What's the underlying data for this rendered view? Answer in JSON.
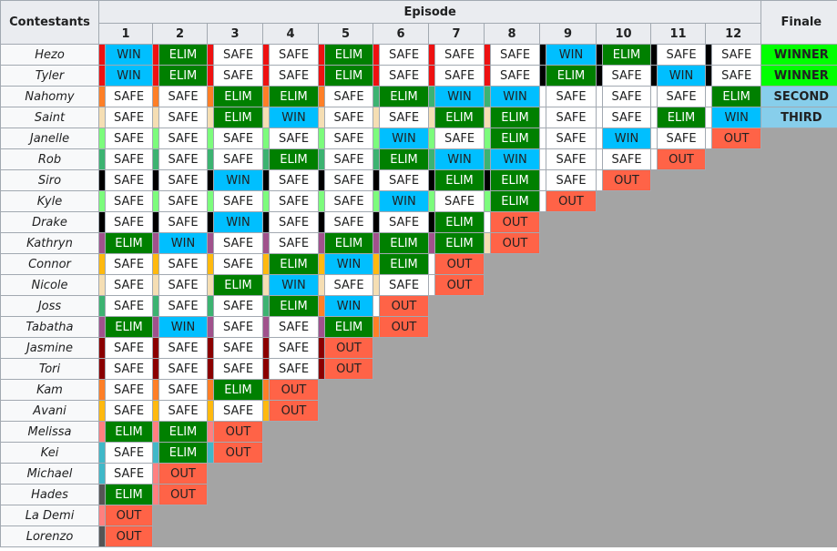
{
  "header": {
    "contestants_label": "Contestants",
    "episode_label": "Episode",
    "episodes": [
      "1",
      "2",
      "3",
      "4",
      "5",
      "6",
      "7",
      "8",
      "9",
      "10",
      "11",
      "12"
    ],
    "finale_label": "Finale"
  },
  "rows": [
    {
      "name": "Hezo",
      "color": "#ee1111",
      "results": [
        "WIN",
        "ELIM",
        "SAFE",
        "SAFE",
        "ELIM",
        "SAFE",
        "SAFE",
        "SAFE",
        "WIN",
        "ELIM",
        "SAFE",
        "SAFE"
      ],
      "finale": "WINNER",
      "stripes": [
        "#ee1111",
        "#ee1111",
        "#ee1111",
        "#ee1111",
        "#ee1111",
        "#ee1111",
        "#ee1111",
        "#ee1111",
        "#000000",
        "#000000",
        "#000000",
        "#000000"
      ]
    },
    {
      "name": "Tyler",
      "color": "#ee1111",
      "results": [
        "WIN",
        "ELIM",
        "SAFE",
        "SAFE",
        "ELIM",
        "SAFE",
        "SAFE",
        "SAFE",
        "ELIM",
        "SAFE",
        "WIN",
        "SAFE"
      ],
      "finale": "WINNER",
      "stripes": [
        "#ee1111",
        "#ee1111",
        "#ee1111",
        "#ee1111",
        "#ee1111",
        "#ee1111",
        "#ee1111",
        "#ee1111",
        "#000000",
        "#000000",
        "#000000",
        "#000000"
      ]
    },
    {
      "name": "Nahomy",
      "color": "#ff7f27",
      "results": [
        "SAFE",
        "SAFE",
        "ELIM",
        "ELIM",
        "SAFE",
        "ELIM",
        "WIN",
        "WIN",
        "SAFE",
        "SAFE",
        "SAFE",
        "ELIM"
      ],
      "finale": "SECOND",
      "stripes": [
        "#ff7f27",
        "#ff7f27",
        "#ff7f27",
        "#ff7f27",
        "#ff7f27",
        "#3cb371",
        "#3cb371",
        "#3cb371",
        "#ffffff",
        "#ffffff",
        "#ffffff",
        "#ffffff"
      ]
    },
    {
      "name": "Saint",
      "color": "#f5deb3",
      "results": [
        "SAFE",
        "SAFE",
        "ELIM",
        "WIN",
        "SAFE",
        "SAFE",
        "ELIM",
        "ELIM",
        "SAFE",
        "SAFE",
        "ELIM",
        "WIN"
      ],
      "finale": "THIRD",
      "stripes": [
        "#f5deb3",
        "#f5deb3",
        "#f5deb3",
        "#f5deb3",
        "#f5deb3",
        "#f5deb3",
        "#f5deb3",
        "#f5deb3",
        "#ffffff",
        "#ffffff",
        "#ffffff",
        "#ffffff"
      ]
    },
    {
      "name": "Janelle",
      "color": "#7cfc7c",
      "results": [
        "SAFE",
        "SAFE",
        "SAFE",
        "SAFE",
        "SAFE",
        "WIN",
        "SAFE",
        "ELIM",
        "SAFE",
        "WIN",
        "SAFE",
        "OUT"
      ],
      "finale": "",
      "stripes": [
        "#7cfc7c",
        "#7cfc7c",
        "#7cfc7c",
        "#7cfc7c",
        "#7cfc7c",
        "#7cfc7c",
        "#7cfc7c",
        "#7cfc7c",
        "#ffffff",
        "#ffffff",
        "#ffffff",
        "#ffffff"
      ]
    },
    {
      "name": "Rob",
      "color": "#3cb371",
      "results": [
        "SAFE",
        "SAFE",
        "SAFE",
        "ELIM",
        "SAFE",
        "ELIM",
        "WIN",
        "WIN",
        "SAFE",
        "SAFE",
        "OUT",
        ""
      ],
      "finale": "",
      "stripes": [
        "#3cb371",
        "#3cb371",
        "#3cb371",
        "#3cb371",
        "#3cb371",
        "#3cb371",
        "#3cb371",
        "#3cb371",
        "#ffffff",
        "#ffffff",
        "#ffffff",
        ""
      ]
    },
    {
      "name": "Siro",
      "color": "#000000",
      "results": [
        "SAFE",
        "SAFE",
        "WIN",
        "SAFE",
        "SAFE",
        "SAFE",
        "ELIM",
        "ELIM",
        "SAFE",
        "OUT",
        "",
        ""
      ],
      "finale": "",
      "stripes": [
        "#000000",
        "#000000",
        "#000000",
        "#000000",
        "#000000",
        "#000000",
        "#000000",
        "#000000",
        "#ffffff",
        "#ffffff",
        "",
        ""
      ]
    },
    {
      "name": "Kyle",
      "color": "#7cfc7c",
      "results": [
        "SAFE",
        "SAFE",
        "SAFE",
        "SAFE",
        "SAFE",
        "WIN",
        "SAFE",
        "ELIM",
        "OUT",
        "",
        "",
        ""
      ],
      "finale": "",
      "stripes": [
        "#7cfc7c",
        "#7cfc7c",
        "#7cfc7c",
        "#7cfc7c",
        "#7cfc7c",
        "#7cfc7c",
        "#7cfc7c",
        "#7cfc7c",
        "#ffffff",
        "",
        "",
        ""
      ]
    },
    {
      "name": "Drake",
      "color": "#000000",
      "results": [
        "SAFE",
        "SAFE",
        "WIN",
        "SAFE",
        "SAFE",
        "SAFE",
        "ELIM",
        "OUT",
        "",
        "",
        "",
        ""
      ],
      "finale": "",
      "stripes": [
        "#000000",
        "#000000",
        "#000000",
        "#000000",
        "#000000",
        "#000000",
        "#000000",
        "#ffffff",
        "",
        "",
        "",
        ""
      ]
    },
    {
      "name": "Kathryn",
      "color": "#a0528c",
      "results": [
        "ELIM",
        "WIN",
        "SAFE",
        "SAFE",
        "ELIM",
        "ELIM",
        "ELIM",
        "OUT",
        "",
        "",
        "",
        ""
      ],
      "finale": "",
      "stripes": [
        "#a0528c",
        "#a0528c",
        "#a0528c",
        "#a0528c",
        "#a0528c",
        "#a0528c",
        "#a0528c",
        "#f5deb3",
        "",
        "",
        "",
        ""
      ]
    },
    {
      "name": "Connor",
      "color": "#ffb90f",
      "results": [
        "SAFE",
        "SAFE",
        "SAFE",
        "ELIM",
        "WIN",
        "ELIM",
        "OUT",
        "",
        "",
        "",
        "",
        ""
      ],
      "finale": "",
      "stripes": [
        "#ffb90f",
        "#ffb90f",
        "#ffb90f",
        "#ffb90f",
        "#ffb90f",
        "#ffb90f",
        "#ffffff",
        "",
        "",
        "",
        "",
        ""
      ]
    },
    {
      "name": "Nicole",
      "color": "#f5deb3",
      "results": [
        "SAFE",
        "SAFE",
        "ELIM",
        "WIN",
        "SAFE",
        "SAFE",
        "OUT",
        "",
        "",
        "",
        "",
        ""
      ],
      "finale": "",
      "stripes": [
        "#f5deb3",
        "#f5deb3",
        "#f5deb3",
        "#f5deb3",
        "#f5deb3",
        "#f5deb3",
        "#ffffff",
        "",
        "",
        "",
        "",
        ""
      ]
    },
    {
      "name": "Joss",
      "color": "#3cb371",
      "results": [
        "SAFE",
        "SAFE",
        "SAFE",
        "ELIM",
        "WIN",
        "OUT",
        "",
        "",
        "",
        "",
        "",
        ""
      ],
      "finale": "",
      "stripes": [
        "#3cb371",
        "#3cb371",
        "#3cb371",
        "#3cb371",
        "#ff7f27",
        "#ffffff",
        "",
        "",
        "",
        "",
        "",
        ""
      ]
    },
    {
      "name": "Tabatha",
      "color": "#a0528c",
      "results": [
        "ELIM",
        "WIN",
        "SAFE",
        "SAFE",
        "ELIM",
        "OUT",
        "",
        "",
        "",
        "",
        "",
        ""
      ],
      "finale": "",
      "stripes": [
        "#a0528c",
        "#a0528c",
        "#a0528c",
        "#a0528c",
        "#a0528c",
        "#ff7f27",
        "",
        "",
        "",
        "",
        "",
        ""
      ]
    },
    {
      "name": "Jasmine",
      "color": "#8b0000",
      "results": [
        "SAFE",
        "SAFE",
        "SAFE",
        "SAFE",
        "OUT",
        "",
        "",
        "",
        "",
        "",
        "",
        ""
      ],
      "finale": "",
      "stripes": [
        "#8b0000",
        "#8b0000",
        "#8b0000",
        "#8b0000",
        "#8b0000",
        "",
        "",
        "",
        "",
        "",
        "",
        ""
      ]
    },
    {
      "name": "Tori",
      "color": "#8b0000",
      "results": [
        "SAFE",
        "SAFE",
        "SAFE",
        "SAFE",
        "OUT",
        "",
        "",
        "",
        "",
        "",
        "",
        ""
      ],
      "finale": "",
      "stripes": [
        "#8b0000",
        "#8b0000",
        "#8b0000",
        "#8b0000",
        "#8b0000",
        "",
        "",
        "",
        "",
        "",
        "",
        ""
      ]
    },
    {
      "name": "Kam",
      "color": "#ff7f27",
      "results": [
        "SAFE",
        "SAFE",
        "ELIM",
        "OUT",
        "",
        "",
        "",
        "",
        "",
        "",
        "",
        ""
      ],
      "finale": "",
      "stripes": [
        "#ff7f27",
        "#ff7f27",
        "#ff7f27",
        "#ff7f27",
        "",
        "",
        "",
        "",
        "",
        "",
        "",
        ""
      ]
    },
    {
      "name": "Avani",
      "color": "#ffb90f",
      "results": [
        "SAFE",
        "SAFE",
        "SAFE",
        "OUT",
        "",
        "",
        "",
        "",
        "",
        "",
        "",
        ""
      ],
      "finale": "",
      "stripes": [
        "#ffb90f",
        "#ffb90f",
        "#ffb90f",
        "#ffb90f",
        "",
        "",
        "",
        "",
        "",
        "",
        "",
        ""
      ]
    },
    {
      "name": "Melissa",
      "color": "#ff8080",
      "results": [
        "ELIM",
        "ELIM",
        "OUT",
        "",
        "",
        "",
        "",
        "",
        "",
        "",
        "",
        ""
      ],
      "finale": "",
      "stripes": [
        "#ff8080",
        "#ff8080",
        "#ff8080",
        "",
        "",
        "",
        "",
        "",
        "",
        "",
        "",
        ""
      ]
    },
    {
      "name": "Kei",
      "color": "#40b8c8",
      "results": [
        "SAFE",
        "ELIM",
        "OUT",
        "",
        "",
        "",
        "",
        "",
        "",
        "",
        "",
        ""
      ],
      "finale": "",
      "stripes": [
        "#40b8c8",
        "#40b8c8",
        "#40b8c8",
        "",
        "",
        "",
        "",
        "",
        "",
        "",
        "",
        ""
      ]
    },
    {
      "name": "Michael",
      "color": "#40b8c8",
      "results": [
        "SAFE",
        "OUT",
        "",
        "",
        "",
        "",
        "",
        "",
        "",
        "",
        "",
        ""
      ],
      "finale": "",
      "stripes": [
        "#40b8c8",
        "#ff8080",
        "",
        "",
        "",
        "",
        "",
        "",
        "",
        "",
        "",
        ""
      ]
    },
    {
      "name": "Hades",
      "color": "#ff8080",
      "results": [
        "ELIM",
        "OUT",
        "",
        "",
        "",
        "",
        "",
        "",
        "",
        "",
        "",
        ""
      ],
      "finale": "",
      "stripes": [
        "#555555",
        "#ff8080",
        "",
        "",
        "",
        "",
        "",
        "",
        "",
        "",
        "",
        ""
      ]
    },
    {
      "name": "La Demi",
      "color": "#ff8080",
      "results": [
        "OUT",
        "",
        "",
        "",
        "",
        "",
        "",
        "",
        "",
        "",
        "",
        ""
      ],
      "finale": "",
      "stripes": [
        "#ff8080",
        "",
        "",
        "",
        "",
        "",
        "",
        "",
        "",
        "",
        "",
        ""
      ]
    },
    {
      "name": "Lorenzo",
      "color": "#555555",
      "results": [
        "OUT",
        "",
        "",
        "",
        "",
        "",
        "",
        "",
        "",
        "",
        "",
        ""
      ],
      "finale": "",
      "stripes": [
        "#555555",
        "",
        "",
        "",
        "",
        "",
        "",
        "",
        "",
        "",
        "",
        ""
      ]
    }
  ]
}
